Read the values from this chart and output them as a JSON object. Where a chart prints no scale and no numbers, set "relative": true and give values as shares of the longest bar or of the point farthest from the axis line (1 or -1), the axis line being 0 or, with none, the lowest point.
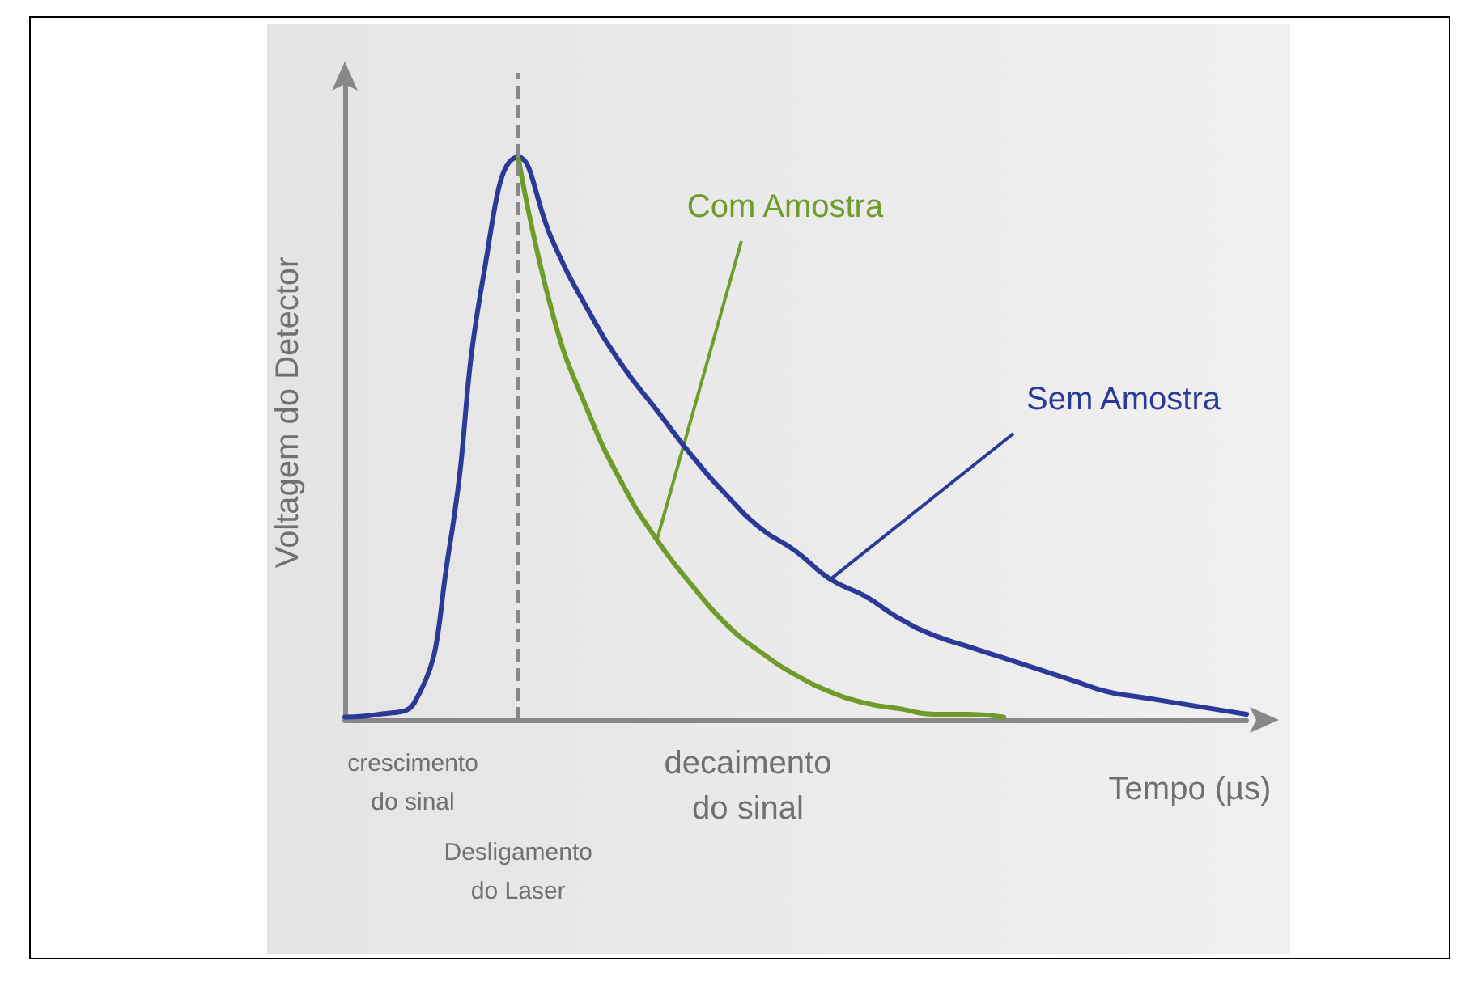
{
  "chart_data": {
    "type": "line",
    "relative": true,
    "xlabel": "Tempo (µs)",
    "ylabel": "Voltagem do Detector",
    "categories": [
      null,
      null,
      null,
      null,
      null,
      null,
      null,
      null,
      null,
      null,
      null,
      null,
      null,
      null,
      null,
      null,
      null,
      null,
      null,
      null,
      null,
      null,
      null,
      null,
      null,
      null,
      null
    ],
    "series": [
      {
        "name": "Sem Amostra",
        "color": "#2b3a97",
        "values": [
          0.005,
          0.01,
          0.03,
          0.3,
          0.79,
          1,
          0.85,
          0.73,
          0.63,
          0.55,
          0.47,
          0.4,
          0.34,
          0.3,
          0.25,
          0.22,
          0.18,
          0.15,
          0.13,
          0.11,
          0.09,
          0.07,
          0.05,
          0.04,
          0.03,
          0.02,
          0.01
        ]
      },
      {
        "name": "Com Amostra",
        "color": "#6f9b2a",
        "values": [
          null,
          null,
          null,
          null,
          null,
          1,
          0.72,
          0.55,
          0.42,
          0.32,
          0.24,
          0.17,
          0.12,
          0.08,
          0.05,
          0.03,
          0.02,
          0.01,
          0.01,
          0.005,
          null,
          null,
          null,
          null,
          null,
          null,
          null
        ]
      }
    ],
    "annotations": [
      "crescimento\ndo sinal",
      "decaimento\ndo sinal",
      "Desligamento\ndo Laser"
    ],
    "grid": false,
    "legend": false,
    "marker": "none",
    "line_style": "solid"
  }
}
